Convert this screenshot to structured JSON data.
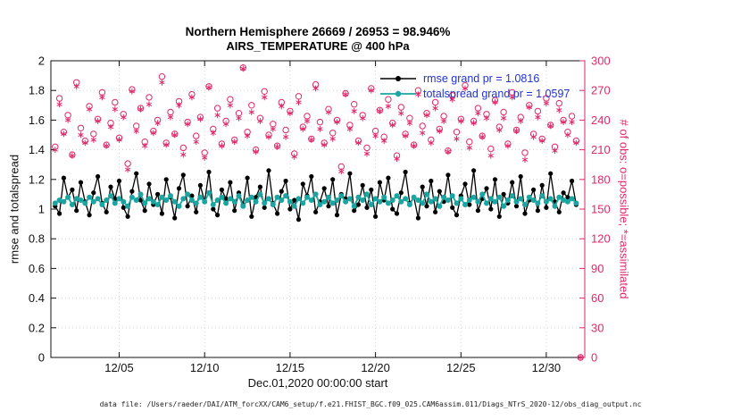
{
  "figure": {
    "title_line1": "Northern Hemisphere 26669 / 26953 = 98.946%",
    "title_line2": "AIRS_TEMPERATURE @ 400 hPa",
    "xlabel": "Dec.01,2020 00:00:00 start",
    "ylabel_left": "rmse and totalspread",
    "ylabel_right": "# of obs: o=possible; *=assimilated",
    "footer": "data file: /Users/raeder/DAI/ATM_forcXX/CAM6_setup/f.e21.FHIST_BGC.f09_025.CAM6assim.011/Diags_NTrS_2020-12/obs_diag_output.nc",
    "colors": {
      "rmse": "#000000",
      "spread": "#1aa5a0",
      "obs": "#e1286b",
      "legend_text": "#2233cc",
      "grid": "#d5d5d5",
      "axis": "#111111"
    }
  },
  "legend": {
    "rmse_label": "rmse grand pr = 1.0816",
    "spread_label": "totalspread grand pr = 1.0597"
  },
  "chart_data": {
    "type": "line",
    "title": "Northern Hemisphere 26669 / 26953 = 98.946% | AIRS_TEMPERATURE @ 400 hPa",
    "x_axis": {
      "start_day": 0.25,
      "step_days": 0.25,
      "n_points": 124,
      "xlim_days": [
        0,
        31.25
      ],
      "ticks": [
        {
          "day": 4,
          "label": "12/05"
        },
        {
          "day": 9,
          "label": "12/10"
        },
        {
          "day": 14,
          "label": "12/15"
        },
        {
          "day": 19,
          "label": "12/20"
        },
        {
          "day": 24,
          "label": "12/25"
        },
        {
          "day": 29,
          "label": "12/30"
        }
      ]
    },
    "y_left": {
      "lim": [
        0,
        2
      ],
      "tick_values": [
        0,
        0.2,
        0.4,
        0.6,
        0.8,
        1,
        1.2,
        1.4,
        1.6,
        1.8,
        2
      ],
      "tick_labels": [
        "0",
        "0.2",
        "0.4",
        "0.6",
        "0.8",
        "1",
        "1.2",
        "1.4",
        "1.6",
        "1.8",
        "2"
      ]
    },
    "y_right": {
      "lim": [
        0,
        300
      ],
      "tick_values": [
        0,
        30,
        60,
        90,
        120,
        150,
        180,
        210,
        240,
        270,
        300
      ],
      "tick_labels": [
        "0",
        "30",
        "60",
        "90",
        "120",
        "150",
        "180",
        "210",
        "240",
        "270",
        "300"
      ]
    },
    "series": [
      {
        "name": "rmse",
        "axis": "left",
        "color_key": "rmse",
        "marker": "filled-circle",
        "line": true,
        "lwidth": 1.3,
        "msize": 2.6,
        "grand_mean": 1.0816,
        "values": [
          1.02,
          0.97,
          1.21,
          1.08,
          1.13,
          0.99,
          1.18,
          1.05,
          0.96,
          1.11,
          1.22,
          1.04,
          0.98,
          1.15,
          1.07,
          1.19,
          1.01,
          0.95,
          1.12,
          1.24,
          1.06,
          0.99,
          1.17,
          1.03,
          1.1,
          0.97,
          1.2,
          1.08,
          0.94,
          1.14,
          1.23,
          1.02,
          1.09,
          0.98,
          1.16,
          1.05,
          1.25,
          1.0,
          0.96,
          1.13,
          1.07,
          1.18,
          0.99,
          1.11,
          1.03,
          1.21,
          0.95,
          1.08,
          1.15,
          1.01,
          1.26,
          1.04,
          0.97,
          1.12,
          1.19,
          1.0,
          1.06,
          0.93,
          1.17,
          1.09,
          1.22,
          0.98,
          1.05,
          1.14,
          1.02,
          1.2,
          0.96,
          1.1,
          1.07,
          1.24,
          0.99,
          1.03,
          1.16,
          1.01,
          1.13,
          0.95,
          1.18,
          1.06,
          1.21,
          1.0,
          0.97,
          1.11,
          1.25,
          1.04,
          1.08,
          0.94,
          1.15,
          1.02,
          1.19,
          0.98,
          1.12,
          1.05,
          1.23,
          1.01,
          0.96,
          1.09,
          1.17,
          1.03,
          1.26,
          0.99,
          1.07,
          1.14,
          1.0,
          1.2,
          0.95,
          1.1,
          1.04,
          1.18,
          1.02,
          1.22,
          0.97,
          1.06,
          1.13,
          0.99,
          1.16,
          1.01,
          1.24,
          1.05,
          0.98,
          1.11,
          1.08,
          1.19,
          1.03,
          null
        ]
      },
      {
        "name": "totalspread",
        "axis": "left",
        "color_key": "spread",
        "marker": "filled-circle",
        "line": true,
        "lwidth": 1.8,
        "msize": 3,
        "grand_mean": 1.0597,
        "values": [
          1.04,
          1.06,
          1.05,
          1.08,
          1.03,
          1.07,
          1.06,
          1.04,
          1.08,
          1.05,
          1.07,
          1.03,
          1.06,
          1.09,
          1.04,
          1.07,
          1.05,
          1.02,
          1.08,
          1.06,
          1.1,
          1.04,
          1.07,
          1.05,
          1.03,
          1.08,
          1.06,
          1.09,
          1.05,
          1.02,
          1.07,
          1.1,
          1.06,
          1.04,
          1.08,
          1.05,
          1.11,
          1.03,
          1.06,
          1.08,
          1.04,
          1.07,
          1.05,
          1.09,
          1.02,
          1.06,
          1.08,
          1.05,
          1.1,
          1.04,
          1.07,
          1.03,
          1.08,
          1.06,
          1.09,
          1.05,
          1.02,
          1.07,
          1.04,
          1.08,
          1.06,
          1.1,
          1.03,
          1.05,
          1.08,
          1.04,
          1.06,
          1.09,
          1.05,
          1.07,
          1.02,
          1.08,
          1.06,
          1.1,
          1.03,
          1.07,
          1.05,
          1.08,
          1.04,
          1.06,
          1.09,
          1.05,
          1.07,
          1.03,
          1.08,
          1.06,
          1.04,
          1.1,
          1.05,
          1.07,
          1.02,
          1.08,
          1.06,
          1.09,
          1.04,
          1.07,
          1.03,
          1.06,
          1.08,
          1.05,
          1.1,
          1.04,
          1.07,
          1.05,
          1.08,
          1.02,
          1.06,
          1.09,
          1.05,
          1.07,
          1.03,
          1.08,
          1.06,
          1.04,
          1.09,
          1.05,
          1.07,
          1.02,
          1.08,
          1.06,
          1.05,
          1.07,
          1.04,
          null
        ]
      },
      {
        "name": "possible",
        "axis": "right",
        "color_key": "obs",
        "marker": "open-circle",
        "line": false,
        "lwidth": 1,
        "msize": 3.2,
        "values": [
          213,
          262,
          228,
          245,
          205,
          278,
          232,
          219,
          254,
          226,
          241,
          268,
          215,
          237,
          258,
          222,
          246,
          196,
          271,
          234,
          252,
          218,
          263,
          229,
          240,
          284,
          217,
          248,
          226,
          259,
          212,
          238,
          266,
          224,
          243,
          207,
          274,
          231,
          252,
          216,
          239,
          261,
          220,
          247,
          293,
          228,
          255,
          210,
          242,
          269,
          225,
          236,
          214,
          258,
          230,
          249,
          206,
          264,
          233,
          244,
          221,
          276,
          238,
          217,
          251,
          227,
          240,
          193,
          267,
          235,
          256,
          219,
          245,
          212,
          272,
          229,
          250,
          223,
          261,
          237,
          204,
          253,
          226,
          242,
          215,
          270,
          234,
          247,
          220,
          258,
          231,
          244,
          209,
          265,
          228,
          241,
          275,
          218,
          239,
          252,
          224,
          246,
          211,
          260,
          233,
          248,
          216,
          268,
          230,
          243,
          207,
          255,
          226,
          249,
          221,
          262,
          235,
          213,
          257,
          240,
          228,
          244,
          219,
          0
        ]
      },
      {
        "name": "assimilated",
        "axis": "right",
        "color_key": "obs",
        "marker": "asterisk",
        "line": false,
        "lwidth": 1,
        "msize": 3.4,
        "values": [
          210,
          256,
          226,
          240,
          204,
          274,
          225,
          217,
          251,
          220,
          239,
          263,
          214,
          233,
          251,
          220,
          243,
          190,
          269,
          229,
          251,
          214,
          256,
          227,
          237,
          278,
          215,
          243,
          225,
          255,
          205,
          236,
          263,
          218,
          241,
          202,
          273,
          227,
          245,
          214,
          236,
          255,
          218,
          242,
          292,
          224,
          248,
          208,
          239,
          263,
          223,
          231,
          213,
          254,
          223,
          247,
          203,
          258,
          231,
          239,
          220,
          272,
          231,
          215,
          248,
          221,
          238,
          188,
          266,
          231,
          249,
          217,
          242,
          206,
          270,
          224,
          249,
          219,
          254,
          235,
          201,
          247,
          224,
          237,
          214,
          266,
          227,
          245,
          217,
          252,
          229,
          239,
          208,
          261,
          221,
          239,
          272,
          212,
          237,
          247,
          223,
          242,
          204,
          258,
          230,
          242,
          214,
          263,
          229,
          239,
          200,
          253,
          223,
          243,
          219,
          257,
          234,
          209,
          250,
          238,
          225,
          238,
          217,
          0
        ]
      }
    ]
  }
}
